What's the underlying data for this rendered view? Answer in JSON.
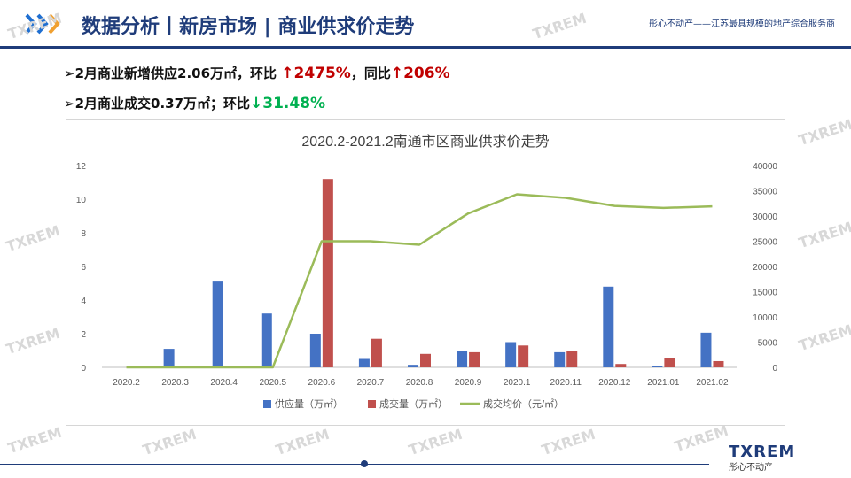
{
  "header": {
    "title": "数据分析丨新房市场 | 商业供求价走势",
    "tagline": "彤心不动产——江苏最具规模的地产综合服务商"
  },
  "bullets": [
    {
      "prefix": "2月商业新增供应2.06万㎡，环比 ",
      "v1": "↑2475%",
      "mid": "，同比",
      "v2": "↑206%"
    },
    {
      "prefix": "2月商业成交0.37万㎡；环比",
      "v1": "↓31.48%"
    }
  ],
  "watermark": {
    "brand": "TXREM",
    "sub": "彤心不动产"
  },
  "logo": {
    "main": "TXREM",
    "sub": "彤心不动产"
  },
  "colors": {
    "supply": "#4472c4",
    "deal": "#c0504d",
    "price": "#9bbb59",
    "accent": "#1f3c7a"
  },
  "chart_data": {
    "type": "bar",
    "title": "2020.2-2021.2南通市区商业供求价走势",
    "categories": [
      "2020.2",
      "2020.3",
      "2020.4",
      "2020.5",
      "2020.6",
      "2020.7",
      "2020.8",
      "2020.9",
      "2020.1",
      "2020.11",
      "2020.12",
      "2021.01",
      "2021.02"
    ],
    "series": [
      {
        "name": "供应量（万㎡）",
        "type": "bar",
        "axis": "left",
        "values": [
          0,
          1.1,
          5.1,
          3.2,
          2.0,
          0.5,
          0.15,
          0.95,
          1.5,
          0.9,
          4.8,
          0.08,
          2.06
        ]
      },
      {
        "name": "成交量（万㎡）",
        "type": "bar",
        "axis": "left",
        "values": [
          0,
          0,
          0,
          0,
          11.2,
          1.7,
          0.8,
          0.9,
          1.3,
          0.95,
          0.2,
          0.54,
          0.37
        ]
      },
      {
        "name": "成交均价（元/㎡）",
        "type": "line",
        "axis": "right",
        "values": [
          0,
          0,
          0,
          0,
          25000,
          25000,
          24300,
          30500,
          34300,
          33600,
          32000,
          31600,
          31900
        ]
      }
    ],
    "ylim_left": [
      0,
      12
    ],
    "yticks_left": [
      "0",
      "2",
      "4",
      "6",
      "8",
      "10",
      "12"
    ],
    "ylim_right": [
      0,
      40000
    ],
    "yticks_right": [
      "0",
      "5000",
      "10000",
      "15000",
      "20000",
      "25000",
      "30000",
      "35000",
      "40000"
    ],
    "legend": "bottom",
    "grid": false
  }
}
